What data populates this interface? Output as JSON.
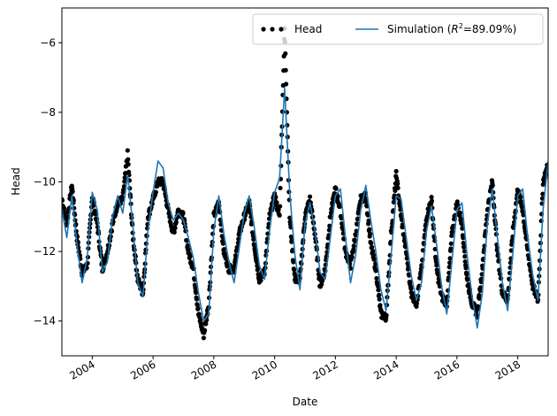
{
  "chart_data": {
    "type": "line",
    "title": "",
    "xlabel": "Date",
    "ylabel": "Head",
    "xlim": [
      "2003-01-01",
      "2019-01-01"
    ],
    "ylim": [
      -15,
      -5
    ],
    "x_ticks": [
      "2004",
      "2006",
      "2008",
      "2010",
      "2012",
      "2014",
      "2016",
      "2018"
    ],
    "y_ticks": [
      -14,
      -12,
      -10,
      -8,
      -6
    ],
    "grid": false,
    "legend": {
      "placement": "top-right",
      "columns": 2
    },
    "series": [
      {
        "name": "Head",
        "style": "points",
        "color": "#000000",
        "x": [
          "2003-01-01",
          "2003-03-01",
          "2003-05-01",
          "2003-07-01",
          "2003-09-01",
          "2003-11-01",
          "2004-01-01",
          "2004-03-01",
          "2004-05-01",
          "2004-07-01",
          "2004-09-01",
          "2004-11-01",
          "2005-01-01",
          "2005-03-01",
          "2005-05-01",
          "2005-07-01",
          "2005-09-01",
          "2005-11-01",
          "2006-01-01",
          "2006-03-01",
          "2006-05-01",
          "2006-07-01",
          "2006-09-01",
          "2006-11-01",
          "2007-01-01",
          "2007-03-01",
          "2007-05-01",
          "2007-07-01",
          "2007-09-01",
          "2007-11-01",
          "2008-01-01",
          "2008-03-01",
          "2008-05-01",
          "2008-07-01",
          "2008-09-01",
          "2008-11-01",
          "2009-01-01",
          "2009-03-01",
          "2009-05-01",
          "2009-07-01",
          "2009-09-01",
          "2009-11-01",
          "2010-01-01",
          "2010-03-01",
          "2010-05-01",
          "2010-07-01",
          "2010-09-01",
          "2010-11-01",
          "2011-01-01",
          "2011-03-01",
          "2011-05-01",
          "2011-07-01",
          "2011-09-01",
          "2011-11-01",
          "2012-01-01",
          "2012-03-01",
          "2012-05-01",
          "2012-07-01",
          "2012-09-01",
          "2012-11-01",
          "2013-01-01",
          "2013-03-01",
          "2013-05-01",
          "2013-07-01",
          "2013-09-01",
          "2013-11-01",
          "2014-01-01",
          "2014-03-01",
          "2014-05-01",
          "2014-07-01",
          "2014-09-01",
          "2014-11-01",
          "2015-01-01",
          "2015-03-01",
          "2015-05-01",
          "2015-07-01",
          "2015-09-01",
          "2015-11-01",
          "2016-01-01",
          "2016-03-01",
          "2016-05-01",
          "2016-07-01",
          "2016-09-01",
          "2016-11-01",
          "2017-01-01",
          "2017-03-01",
          "2017-05-01",
          "2017-07-01",
          "2017-09-01",
          "2017-11-01",
          "2018-01-01",
          "2018-03-01",
          "2018-05-01",
          "2018-07-01",
          "2018-09-01",
          "2018-11-01",
          "2019-01-01"
        ],
        "y": [
          -10.5,
          -11.2,
          -10.1,
          -11.6,
          -12.6,
          -12.4,
          -10.4,
          -11.2,
          -12.5,
          -12.0,
          -11.2,
          -10.6,
          -10.5,
          -9.2,
          -11.5,
          -12.8,
          -13.2,
          -11.0,
          -10.5,
          -10.0,
          -10.0,
          -10.8,
          -11.5,
          -10.8,
          -11.0,
          -12.0,
          -12.5,
          -13.8,
          -14.4,
          -13.5,
          -11.0,
          -10.6,
          -12.0,
          -12.5,
          -12.5,
          -11.5,
          -11.0,
          -10.6,
          -11.8,
          -12.8,
          -12.6,
          -11.0,
          -10.4,
          -11.0,
          -5.6,
          -11.0,
          -12.8,
          -12.8,
          -11.0,
          -10.5,
          -11.5,
          -13.0,
          -12.5,
          -11.0,
          -10.2,
          -10.8,
          -12.0,
          -12.4,
          -11.5,
          -10.5,
          -10.4,
          -11.8,
          -12.5,
          -13.8,
          -13.9,
          -11.5,
          -9.8,
          -11.0,
          -12.0,
          -13.2,
          -13.5,
          -12.5,
          -11.0,
          -10.5,
          -12.5,
          -13.3,
          -13.5,
          -11.5,
          -10.6,
          -11.2,
          -12.8,
          -13.5,
          -13.8,
          -12.5,
          -10.8,
          -10.0,
          -12.0,
          -13.2,
          -13.4,
          -11.5,
          -10.2,
          -10.8,
          -12.0,
          -13.0,
          -13.4,
          -10.0,
          -9.5
        ]
      },
      {
        "name": "Simulation ($R^2$=89.09%)",
        "style": "line",
        "color": "#1f77b4",
        "x": [
          "2003-01-01",
          "2003-03-01",
          "2003-05-01",
          "2003-07-01",
          "2003-09-01",
          "2003-11-01",
          "2004-01-01",
          "2004-03-01",
          "2004-05-01",
          "2004-07-01",
          "2004-09-01",
          "2004-11-01",
          "2005-01-01",
          "2005-03-01",
          "2005-05-01",
          "2005-07-01",
          "2005-09-01",
          "2005-11-01",
          "2006-01-01",
          "2006-03-01",
          "2006-05-01",
          "2006-07-01",
          "2006-09-01",
          "2006-11-01",
          "2007-01-01",
          "2007-03-01",
          "2007-05-01",
          "2007-07-01",
          "2007-09-01",
          "2007-11-01",
          "2008-01-01",
          "2008-03-01",
          "2008-05-01",
          "2008-07-01",
          "2008-09-01",
          "2008-11-01",
          "2009-01-01",
          "2009-03-01",
          "2009-05-01",
          "2009-07-01",
          "2009-09-01",
          "2009-11-01",
          "2010-01-01",
          "2010-03-01",
          "2010-05-01",
          "2010-07-01",
          "2010-09-01",
          "2010-11-01",
          "2011-01-01",
          "2011-03-01",
          "2011-05-01",
          "2011-07-01",
          "2011-09-01",
          "2011-11-01",
          "2012-01-01",
          "2012-03-01",
          "2012-05-01",
          "2012-07-01",
          "2012-09-01",
          "2012-11-01",
          "2013-01-01",
          "2013-03-01",
          "2013-05-01",
          "2013-07-01",
          "2013-09-01",
          "2013-11-01",
          "2014-01-01",
          "2014-03-01",
          "2014-05-01",
          "2014-07-01",
          "2014-09-01",
          "2014-11-01",
          "2015-01-01",
          "2015-03-01",
          "2015-05-01",
          "2015-07-01",
          "2015-09-01",
          "2015-11-01",
          "2016-01-01",
          "2016-03-01",
          "2016-05-01",
          "2016-07-01",
          "2016-09-01",
          "2016-11-01",
          "2017-01-01",
          "2017-03-01",
          "2017-05-01",
          "2017-07-01",
          "2017-09-01",
          "2017-11-01",
          "2018-01-01",
          "2018-03-01",
          "2018-05-01",
          "2018-07-01",
          "2018-09-01",
          "2018-11-01",
          "2019-01-01"
        ],
        "y": [
          -10.8,
          -11.6,
          -10.4,
          -11.8,
          -12.9,
          -12.2,
          -10.3,
          -10.8,
          -12.6,
          -12.3,
          -11.0,
          -10.4,
          -10.9,
          -9.8,
          -11.2,
          -12.9,
          -13.3,
          -11.4,
          -10.3,
          -9.4,
          -9.6,
          -10.6,
          -11.1,
          -10.9,
          -11.1,
          -11.6,
          -12.2,
          -13.2,
          -14.0,
          -13.8,
          -11.4,
          -10.4,
          -11.5,
          -12.3,
          -12.9,
          -11.9,
          -10.9,
          -10.4,
          -11.3,
          -12.4,
          -12.8,
          -11.4,
          -10.3,
          -9.9,
          -7.3,
          -10.3,
          -12.1,
          -13.1,
          -11.2,
          -10.6,
          -11.4,
          -12.6,
          -12.8,
          -11.6,
          -10.4,
          -10.2,
          -11.6,
          -12.9,
          -12.1,
          -10.8,
          -10.1,
          -11.1,
          -12.0,
          -13.1,
          -13.7,
          -12.1,
          -10.4,
          -10.5,
          -11.6,
          -12.7,
          -13.4,
          -12.9,
          -11.4,
          -10.7,
          -11.8,
          -13.0,
          -13.8,
          -12.3,
          -10.8,
          -10.6,
          -12.1,
          -13.3,
          -14.2,
          -13.2,
          -11.2,
          -10.2,
          -11.6,
          -12.9,
          -13.7,
          -12.1,
          -10.4,
          -10.2,
          -11.6,
          -12.7,
          -13.4,
          -10.8,
          -9.4
        ]
      }
    ]
  }
}
